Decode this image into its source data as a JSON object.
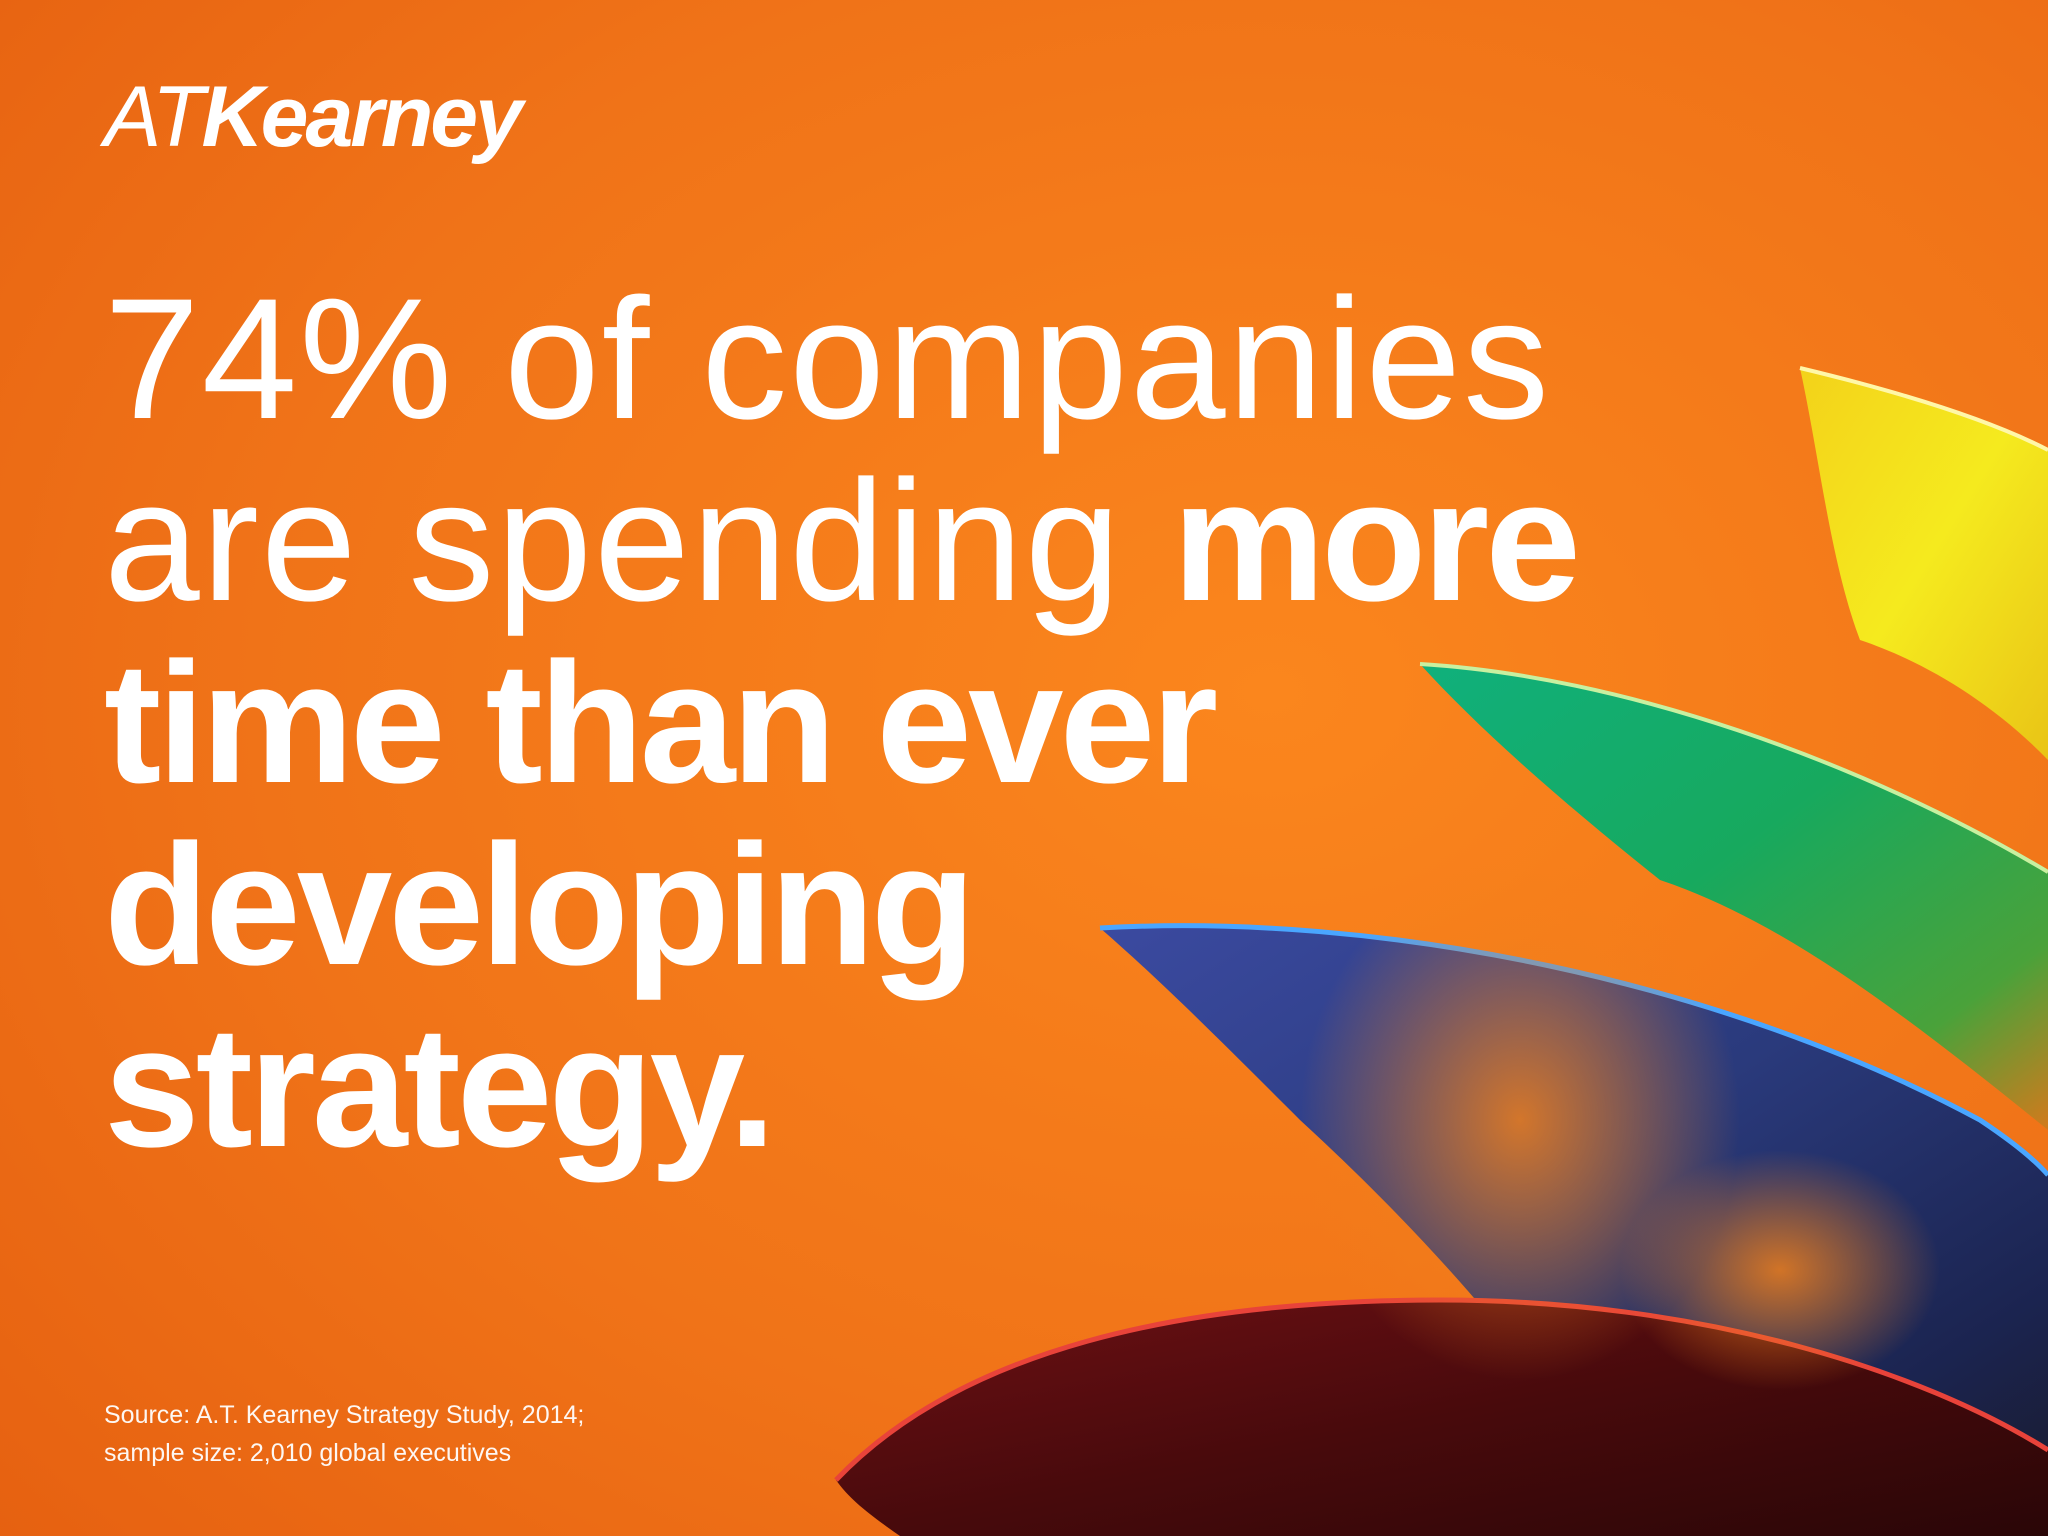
{
  "logo": {
    "light_part": "AT",
    "bold_part": "Kearney"
  },
  "headline": {
    "line1": "74% of companies",
    "line2_light": "are spending ",
    "line2_bold": "more",
    "line3": "time than ever",
    "line4": "developing",
    "line5": "strategy."
  },
  "source": {
    "line1": "Source: A.T. Kearney Strategy Study, 2014;",
    "line2": "sample size: 2,010 global executives"
  },
  "colors": {
    "background": "#ee6a12",
    "yellow_petal": "#f1e21a",
    "green_petal": "#14a86a",
    "blue_petal": "#2a4f9c",
    "red_petal": "#5a0c10",
    "text": "#ffffff"
  }
}
